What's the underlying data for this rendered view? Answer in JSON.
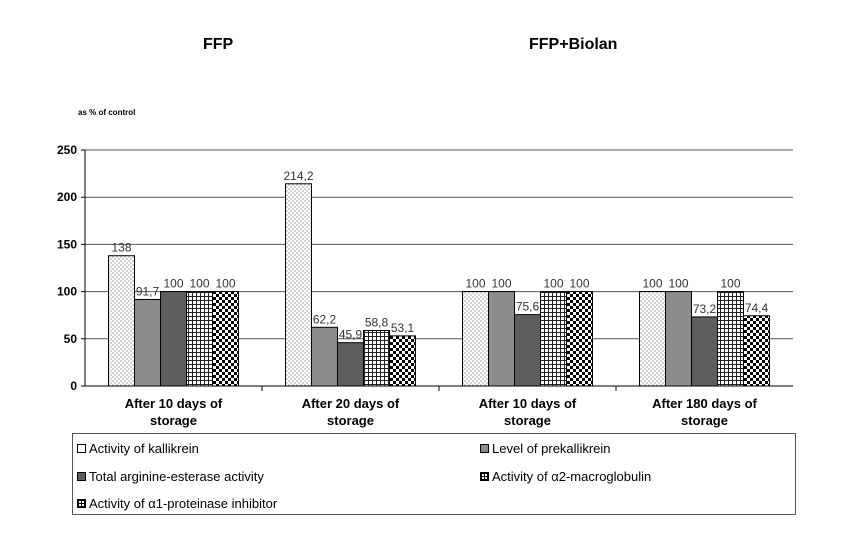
{
  "group_titles": [
    "FFP",
    "FFP+Biolan"
  ],
  "chart_data": {
    "type": "bar",
    "ylabel": "as %  of control",
    "ylim": [
      0,
      250
    ],
    "yticks": [
      0,
      50,
      100,
      150,
      200,
      250
    ],
    "grid": true,
    "legend_position": "bottom",
    "categories": [
      [
        "After 10 days of",
        "storage"
      ],
      [
        "After 20 days of",
        "storage"
      ],
      [
        "After 10 days of",
        "storage"
      ],
      [
        "After 180 days of",
        "storage"
      ]
    ],
    "series": [
      {
        "name": "Activity of kallikrein",
        "values": [
          138,
          214.2,
          100,
          100
        ],
        "labels": [
          "138",
          "214,2",
          "100",
          "100"
        ],
        "fill": "dots"
      },
      {
        "name": "Level of prekallikrein",
        "values": [
          91.7,
          62.2,
          100,
          100
        ],
        "labels": [
          "91,7",
          "62,2",
          "100",
          "100"
        ],
        "fill": "#8c8c8c"
      },
      {
        "name": "Total arginine-esterase activity",
        "values": [
          100,
          45.9,
          75.6,
          73.2
        ],
        "labels": [
          "100",
          "45,9",
          "75,6",
          "73,2"
        ],
        "fill": "#5e5e5e"
      },
      {
        "name": "Activity of α2-macroglobulin",
        "values": [
          100,
          58.8,
          100,
          100
        ],
        "labels": [
          "100",
          "58,8",
          "100",
          "100"
        ],
        "fill": "grid"
      },
      {
        "name": "Activity of α1-proteinase inhibitor",
        "values": [
          100,
          53.1,
          100,
          74.4
        ],
        "labels": [
          "100",
          "53,1",
          "100",
          "74,4"
        ],
        "fill": "checker"
      }
    ]
  },
  "colors": {
    "axis": "#000000",
    "gridline": "#555555",
    "bar_border": "#000000"
  }
}
